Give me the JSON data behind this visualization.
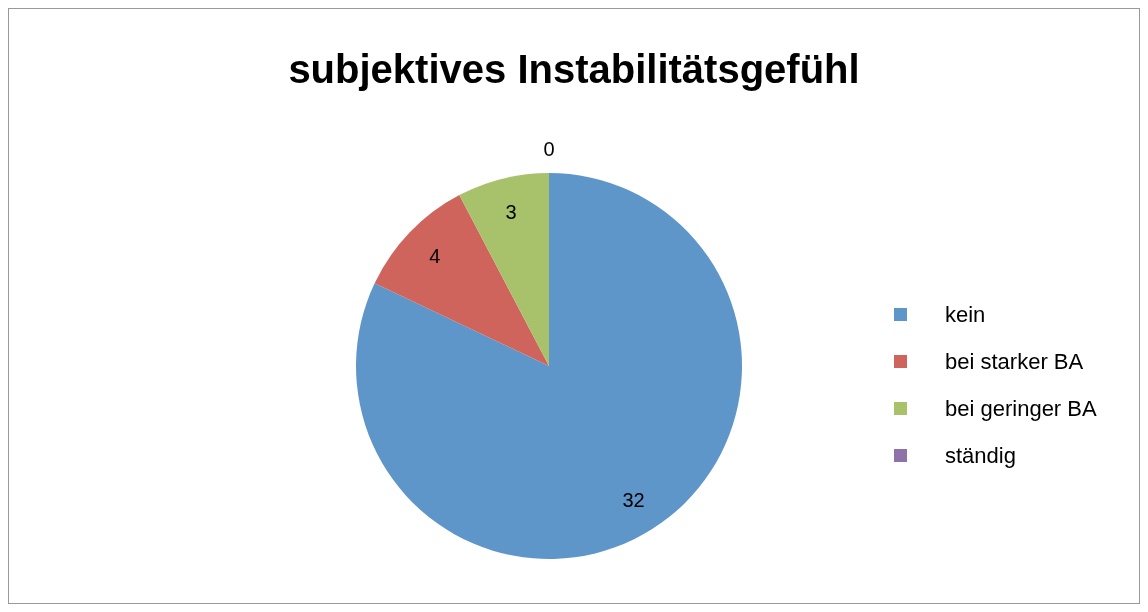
{
  "chart_data": {
    "type": "pie",
    "title": "subjektives Instabilitätsgefühl",
    "categories": [
      "kein",
      "bei starker BA",
      "bei geringer BA",
      "ständig"
    ],
    "values": [
      32,
      4,
      3,
      0
    ],
    "colors": [
      "#5f96c9",
      "#cf645c",
      "#a7c26a",
      "#8e73ab"
    ],
    "value_labels": [
      "32",
      "4",
      "3",
      "0"
    ],
    "legend": "right"
  }
}
